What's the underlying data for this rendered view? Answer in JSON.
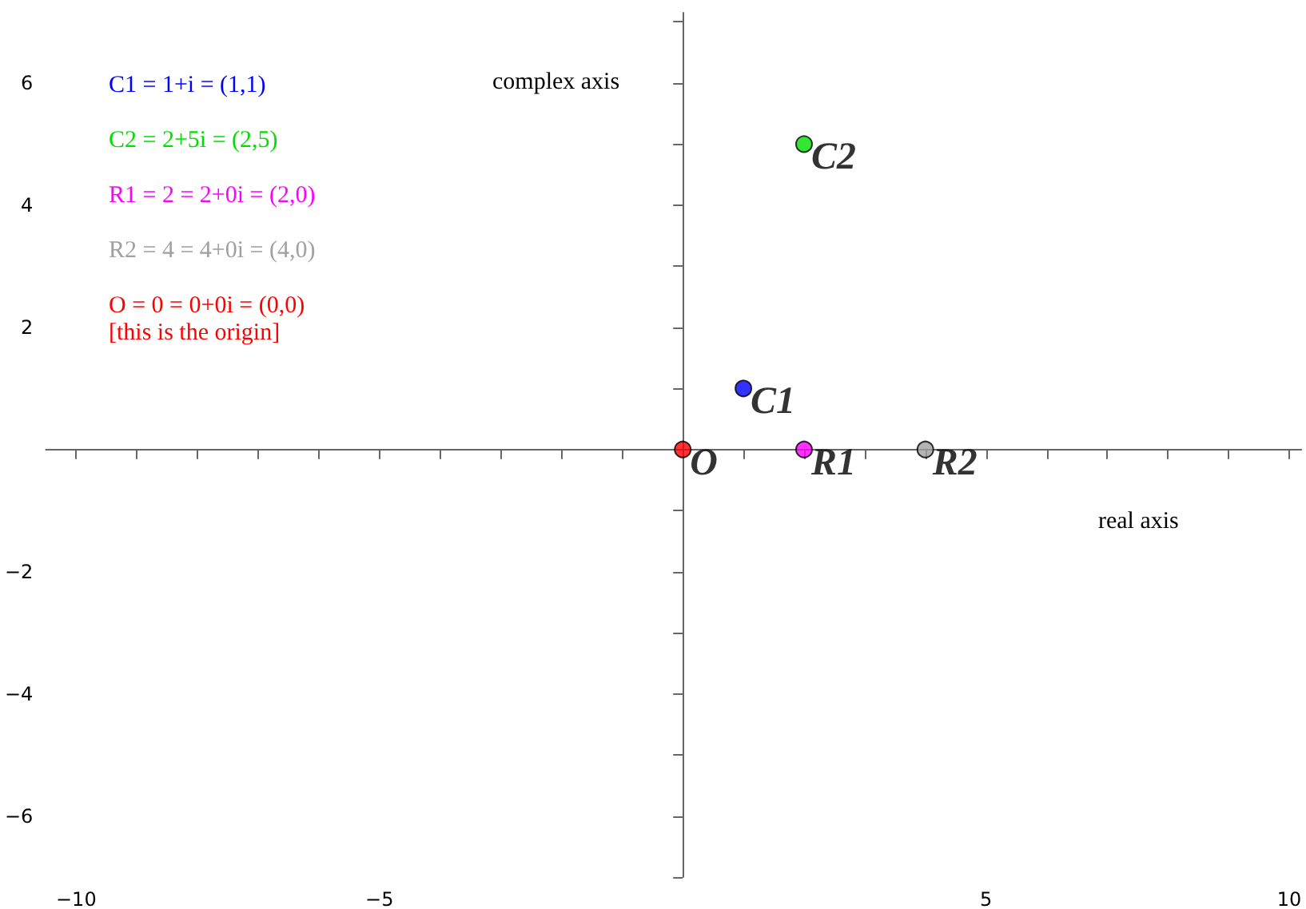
{
  "chart_data": {
    "type": "scatter",
    "xlabel": "real axis",
    "ylabel": "complex axis",
    "xlim": [
      -10.5,
      10.2
    ],
    "ylim": [
      -7,
      7.15
    ],
    "xticks": [
      -10,
      {
        "value": -9,
        "label": null
      },
      {
        "value": -8,
        "label": null
      },
      {
        "value": -7,
        "label": null
      },
      {
        "value": -6,
        "label": null
      },
      -5,
      {
        "value": -4,
        "label": null
      },
      {
        "value": -3,
        "label": null
      },
      {
        "value": -2,
        "label": null
      },
      {
        "value": -1,
        "label": null
      },
      {
        "value": 1,
        "label": null
      },
      {
        "value": 2,
        "label": null
      },
      {
        "value": 3,
        "label": null
      },
      {
        "value": 4,
        "label": null
      },
      5,
      {
        "value": 6,
        "label": null
      },
      {
        "value": 7,
        "label": null
      },
      {
        "value": 8,
        "label": null
      },
      {
        "value": 9,
        "label": null
      },
      10
    ],
    "yticks": [
      {
        "value": -7,
        "label": null
      },
      -6,
      {
        "value": -5,
        "label": null
      },
      -4,
      {
        "value": -3,
        "label": null
      },
      -2,
      {
        "value": -1,
        "label": null
      },
      {
        "value": 1,
        "label": null
      },
      2,
      {
        "value": 3,
        "label": null
      },
      4,
      {
        "value": 5,
        "label": null
      },
      6,
      {
        "value": 7,
        "label": null
      }
    ],
    "grid": false,
    "legend": false,
    "marker": "circle",
    "series": [
      {
        "name": "C1",
        "color": "#0000ff",
        "x": [
          1
        ],
        "values": [
          1
        ]
      },
      {
        "name": "C2",
        "color": "#00e000",
        "x": [
          2
        ],
        "values": [
          5
        ]
      },
      {
        "name": "R1",
        "color": "#ff00ff",
        "x": [
          2
        ],
        "values": [
          0
        ]
      },
      {
        "name": "R2",
        "color": "#a0a0a0",
        "x": [
          4
        ],
        "values": [
          0
        ]
      },
      {
        "name": "O",
        "color": "#ff0000",
        "x": [
          0
        ],
        "values": [
          0
        ]
      }
    ],
    "annotations": [
      "C1 = 1+i = (1,1)",
      "C2 = 2+5i = (2,5)",
      "R1 = 2 = 2+0i = (2,0)",
      "R2 = 4 = 4+0i = (4,0)",
      "O = 0 = 0+0i = (0,0)\n[this is the origin]"
    ]
  }
}
